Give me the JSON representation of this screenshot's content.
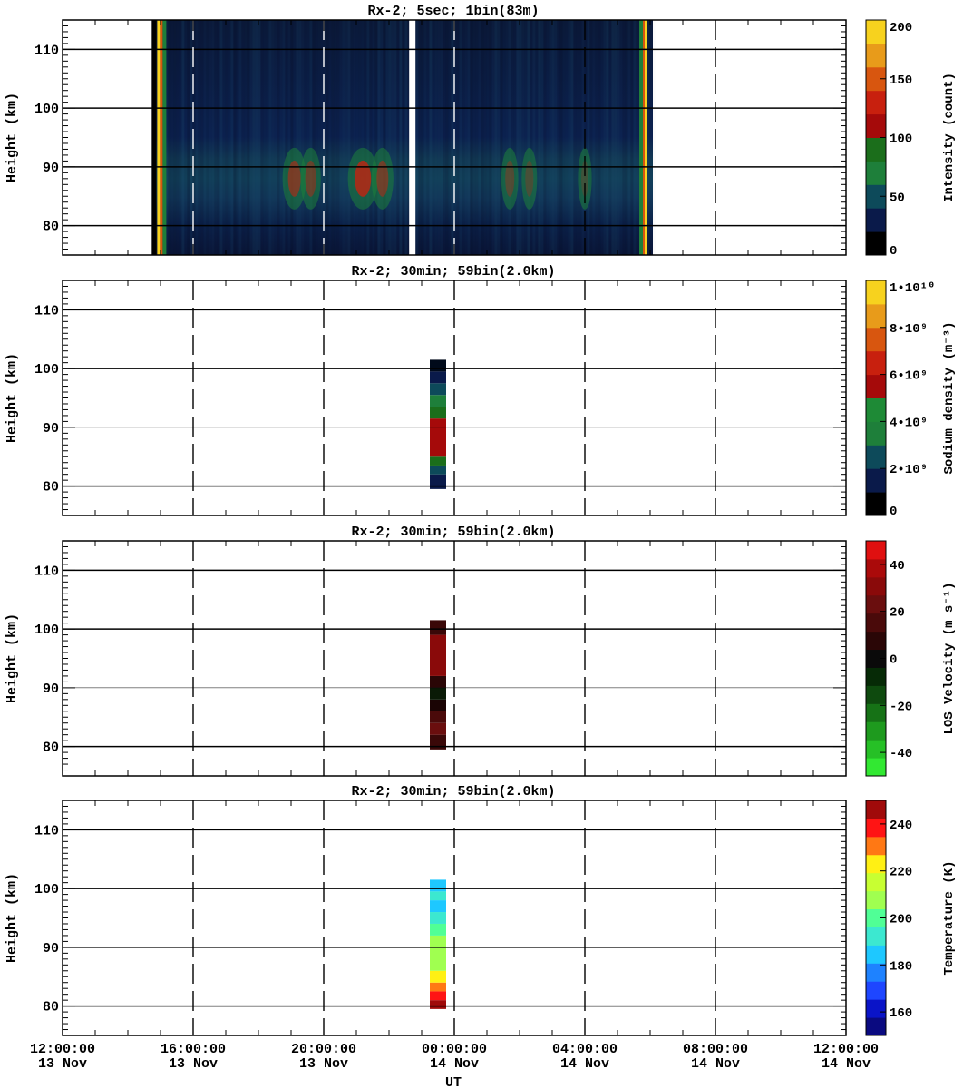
{
  "chart_data": [
    {
      "type": "heatmap",
      "title": "Rx-2;  5sec; 1bin(83m)",
      "ylabel": "Height (km)",
      "ylim": [
        75,
        115
      ],
      "yticks": [
        80,
        90,
        100,
        110
      ],
      "colorbar": {
        "label": "Intensity (count)",
        "ticks": [
          "0",
          "50",
          "100",
          "150",
          "200"
        ],
        "range": [
          0,
          200
        ],
        "colors": [
          "#000000",
          "#0a1a4a",
          "#0d4a5a",
          "#1e7f3a",
          "#1b6e1b",
          "#a50a0a",
          "#c8200e",
          "#d8560f",
          "#e89b1a",
          "#f7d21e"
        ]
      },
      "data_coverage": {
        "start": "13 Nov 14:44",
        "end": "14 Nov 06:05",
        "gaps": [
          "13 Nov 22:42"
        ]
      },
      "sodium_layer_peak_km": 88
    },
    {
      "type": "heatmap",
      "title": "Rx-2; 30min; 59bin(2.0km)",
      "ylabel": "Height (km)",
      "ylim": [
        75,
        115
      ],
      "yticks": [
        80,
        90,
        100,
        110
      ],
      "colorbar": {
        "label": "Sodium density (m⁻³)",
        "ticks": [
          "0",
          "2•10⁹",
          "4•10⁹",
          "6•10⁹",
          "8•10⁹",
          "1•10¹⁰"
        ],
        "range": [
          0,
          10000000000
        ],
        "colors": [
          "#000000",
          "#0a1a4a",
          "#0d4a5a",
          "#1e7f3a",
          "#1e8a36",
          "#a50a0a",
          "#c8200e",
          "#d8560f",
          "#e89b1a",
          "#f7d21e"
        ]
      },
      "column": {
        "time": "13 Nov 23:30",
        "cells": [
          {
            "bottom": 79.5,
            "top": 82,
            "color": "#0a1a4a"
          },
          {
            "bottom": 82,
            "top": 83.5,
            "color": "#0d4a5a"
          },
          {
            "bottom": 83.5,
            "top": 85,
            "color": "#1b6e1b"
          },
          {
            "bottom": 85,
            "top": 91.5,
            "color": "#a50a0a"
          },
          {
            "bottom": 91.5,
            "top": 93.5,
            "color": "#1b6e1b"
          },
          {
            "bottom": 93.5,
            "top": 95.5,
            "color": "#1e7f3a"
          },
          {
            "bottom": 95.5,
            "top": 97.5,
            "color": "#0d4a5a"
          },
          {
            "bottom": 97.5,
            "top": 99.5,
            "color": "#0a1a4a"
          },
          {
            "bottom": 99.5,
            "top": 101.5,
            "color": "#000a1a"
          }
        ]
      }
    },
    {
      "type": "heatmap",
      "title": "Rx-2; 30min; 59bin(2.0km)",
      "ylabel": "Height (km)",
      "ylim": [
        75,
        115
      ],
      "yticks": [
        80,
        90,
        100,
        110
      ],
      "colorbar": {
        "label": "LOS Velocity (m s⁻¹)",
        "ticks": [
          "-40",
          "-20",
          "0",
          "20",
          "40"
        ],
        "range": [
          -50,
          50
        ],
        "colors": [
          "#32e832",
          "#26c026",
          "#1e9a1e",
          "#167216",
          "#0e4a0e",
          "#062a06",
          "#0a0a0a",
          "#2a0606",
          "#4a0a0a",
          "#6a0e0e",
          "#8a0a0a",
          "#aa0a0a",
          "#e01010"
        ]
      },
      "column": {
        "time": "13 Nov 23:30",
        "cells": [
          {
            "bottom": 79.5,
            "top": 82,
            "color": "#3a0808"
          },
          {
            "bottom": 82,
            "top": 84,
            "color": "#6a0e0e"
          },
          {
            "bottom": 84,
            "top": 86,
            "color": "#4a0a0a"
          },
          {
            "bottom": 86,
            "top": 88,
            "color": "#1a0404"
          },
          {
            "bottom": 88,
            "top": 90,
            "color": "#0a1a06"
          },
          {
            "bottom": 90,
            "top": 92,
            "color": "#2a0606"
          },
          {
            "bottom": 92,
            "top": 99,
            "color": "#8a0a0a"
          },
          {
            "bottom": 99,
            "top": 101.5,
            "color": "#3a0808"
          }
        ]
      }
    },
    {
      "type": "heatmap",
      "title": "Rx-2; 30min; 59bin(2.0km)",
      "ylabel": "Height (km)",
      "xlabel": "UT",
      "ylim": [
        75,
        115
      ],
      "yticks": [
        80,
        90,
        100,
        110
      ],
      "colorbar": {
        "label": "Temperature (K)",
        "ticks": [
          "160",
          "180",
          "200",
          "220",
          "240"
        ],
        "range": [
          150,
          250
        ],
        "colors": [
          "#0a0a80",
          "#0a14c8",
          "#1e46ff",
          "#1e82ff",
          "#1ec8ff",
          "#3ce8d0",
          "#50ff96",
          "#a0ff50",
          "#c8ff32",
          "#fff014",
          "#ff7814",
          "#ff1414",
          "#a00a0a"
        ]
      },
      "column": {
        "time": "13 Nov 23:30",
        "cells": [
          {
            "bottom": 79.5,
            "top": 81,
            "color": "#a00a0a"
          },
          {
            "bottom": 81,
            "top": 82.5,
            "color": "#ff1414"
          },
          {
            "bottom": 82.5,
            "top": 84,
            "color": "#ff7814"
          },
          {
            "bottom": 84,
            "top": 86,
            "color": "#fff014"
          },
          {
            "bottom": 86,
            "top": 90,
            "color": "#a0ff50"
          },
          {
            "bottom": 90,
            "top": 92,
            "color": "#a0ff50"
          },
          {
            "bottom": 92,
            "top": 94,
            "color": "#50ff96"
          },
          {
            "bottom": 94,
            "top": 96,
            "color": "#3ce8d0"
          },
          {
            "bottom": 96,
            "top": 98,
            "color": "#1ec8ff"
          },
          {
            "bottom": 98,
            "top": 99.5,
            "color": "#3ce8d0"
          },
          {
            "bottom": 99.5,
            "top": 101.5,
            "color": "#1ec8ff"
          }
        ]
      }
    }
  ],
  "x_axis": {
    "label": "UT",
    "ticks": [
      {
        "time": "12:00:00",
        "date": "13 Nov"
      },
      {
        "time": "16:00:00",
        "date": "13 Nov"
      },
      {
        "time": "20:00:00",
        "date": "13 Nov"
      },
      {
        "time": "00:00:00",
        "date": "14 Nov"
      },
      {
        "time": "04:00:00",
        "date": "14 Nov"
      },
      {
        "time": "08:00:00",
        "date": "14 Nov"
      },
      {
        "time": "12:00:00",
        "date": "14 Nov"
      }
    ],
    "range_hours": [
      0,
      24
    ]
  }
}
